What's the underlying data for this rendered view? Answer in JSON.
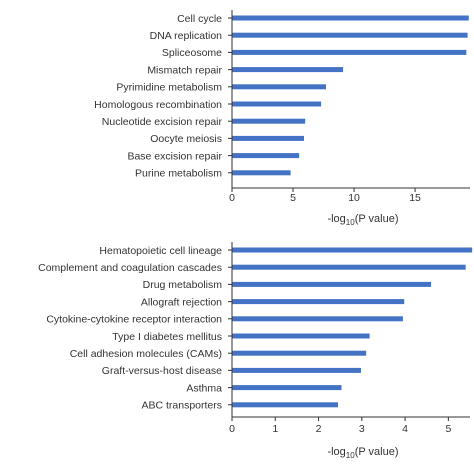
{
  "colors": {
    "bar": "#4472C4",
    "axis": "#333333",
    "text": "#333333"
  },
  "chart_data": [
    {
      "type": "bar",
      "orientation": "horizontal",
      "title": "",
      "ylabel": "",
      "xlabel_parts": {
        "prefix": "-log",
        "sub": "10",
        "suffix": "(P value)"
      },
      "xlim": [
        0,
        19.5
      ],
      "xticks": [
        0,
        5,
        10,
        15
      ],
      "categories": [
        "Cell cycle",
        "DNA replication",
        "Spliceosome",
        "Mismatch repair",
        "Pyrimidine metabolism",
        "Homologous recombination",
        "Nucleotide excision repair",
        "Oocyte meiosis",
        "Base excision repair",
        "Purine metabolism"
      ],
      "values": [
        19.4,
        19.3,
        19.2,
        9.1,
        7.7,
        7.3,
        6.0,
        5.9,
        5.5,
        4.8
      ]
    },
    {
      "type": "bar",
      "orientation": "horizontal",
      "title": "",
      "ylabel": "",
      "xlabel_parts": {
        "prefix": "-log",
        "sub": "10",
        "suffix": "(P value)"
      },
      "xlim": [
        0,
        5.5
      ],
      "xticks": [
        0,
        1,
        2,
        3,
        4,
        5
      ],
      "categories": [
        "Hematopoietic cell lineage",
        "Complement and coagulation cascades",
        "Drug metabolism",
        "Allograft rejection",
        "Cytokine-cytokine receptor interaction",
        "Type I diabetes mellitus",
        "Cell adhesion molecules (CAMs)",
        "Graft-versus-host disease",
        "Asthma",
        "ABC transporters"
      ],
      "values": [
        5.55,
        5.4,
        4.6,
        3.98,
        3.95,
        3.18,
        3.1,
        2.98,
        2.53,
        2.45
      ]
    }
  ]
}
